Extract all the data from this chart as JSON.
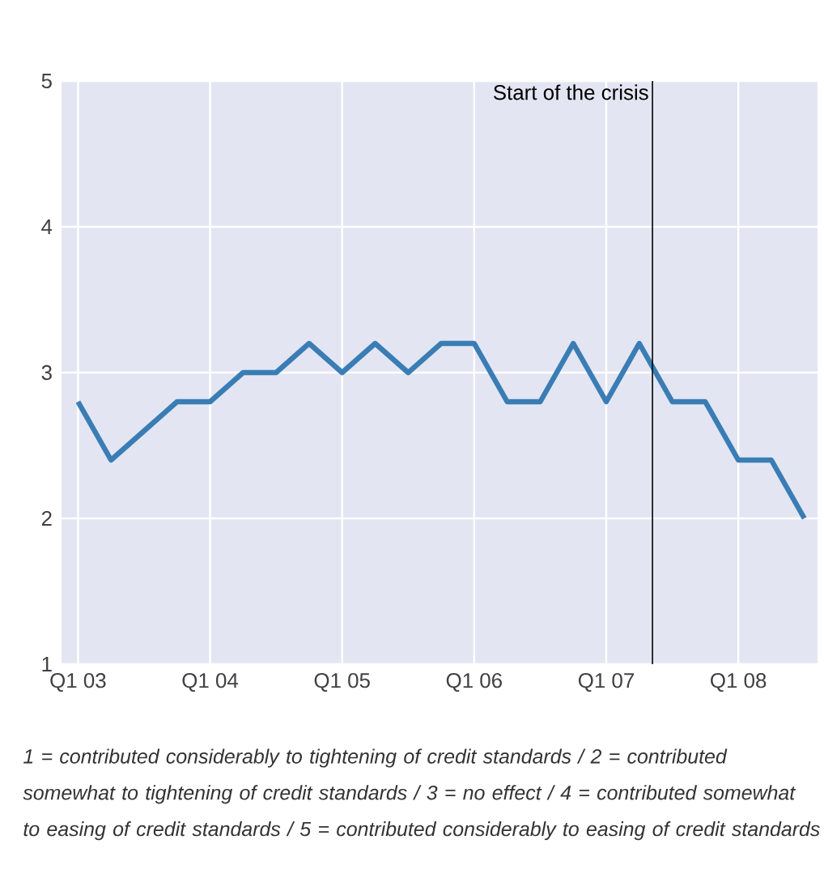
{
  "chart_data": {
    "type": "line",
    "categories": [
      "Q1 03",
      null,
      null,
      null,
      "Q1 04",
      null,
      null,
      null,
      "Q1 05",
      null,
      null,
      null,
      "Q1 06",
      null,
      null,
      null,
      "Q1 07",
      null,
      null,
      null,
      "Q1 08",
      null,
      null
    ],
    "series": [
      {
        "color": "#3a7db5",
        "values": [
          2.8,
          2.4,
          2.6,
          2.8,
          2.8,
          3.0,
          3.0,
          3.2,
          3.0,
          3.2,
          3.0,
          3.2,
          3.2,
          2.8,
          2.8,
          3.2,
          2.8,
          3.2,
          2.8,
          2.8,
          2.4,
          2.4,
          2.0
        ]
      }
    ],
    "ylim": [
      1,
      5
    ],
    "yticks": [
      1,
      2,
      3,
      4,
      5
    ],
    "grid": true,
    "marker": "none",
    "line_style": "solid",
    "annotations": [
      "Start of the crisis",
      "1 = contributed considerably to tightening of credit standards / 2 = contributed somewhat to tightening of credit standards / 3 = no effect / 4 = contributed somewhat to easing of credit standards / 5 = contributed considerably to easing of credit standards"
    ]
  }
}
